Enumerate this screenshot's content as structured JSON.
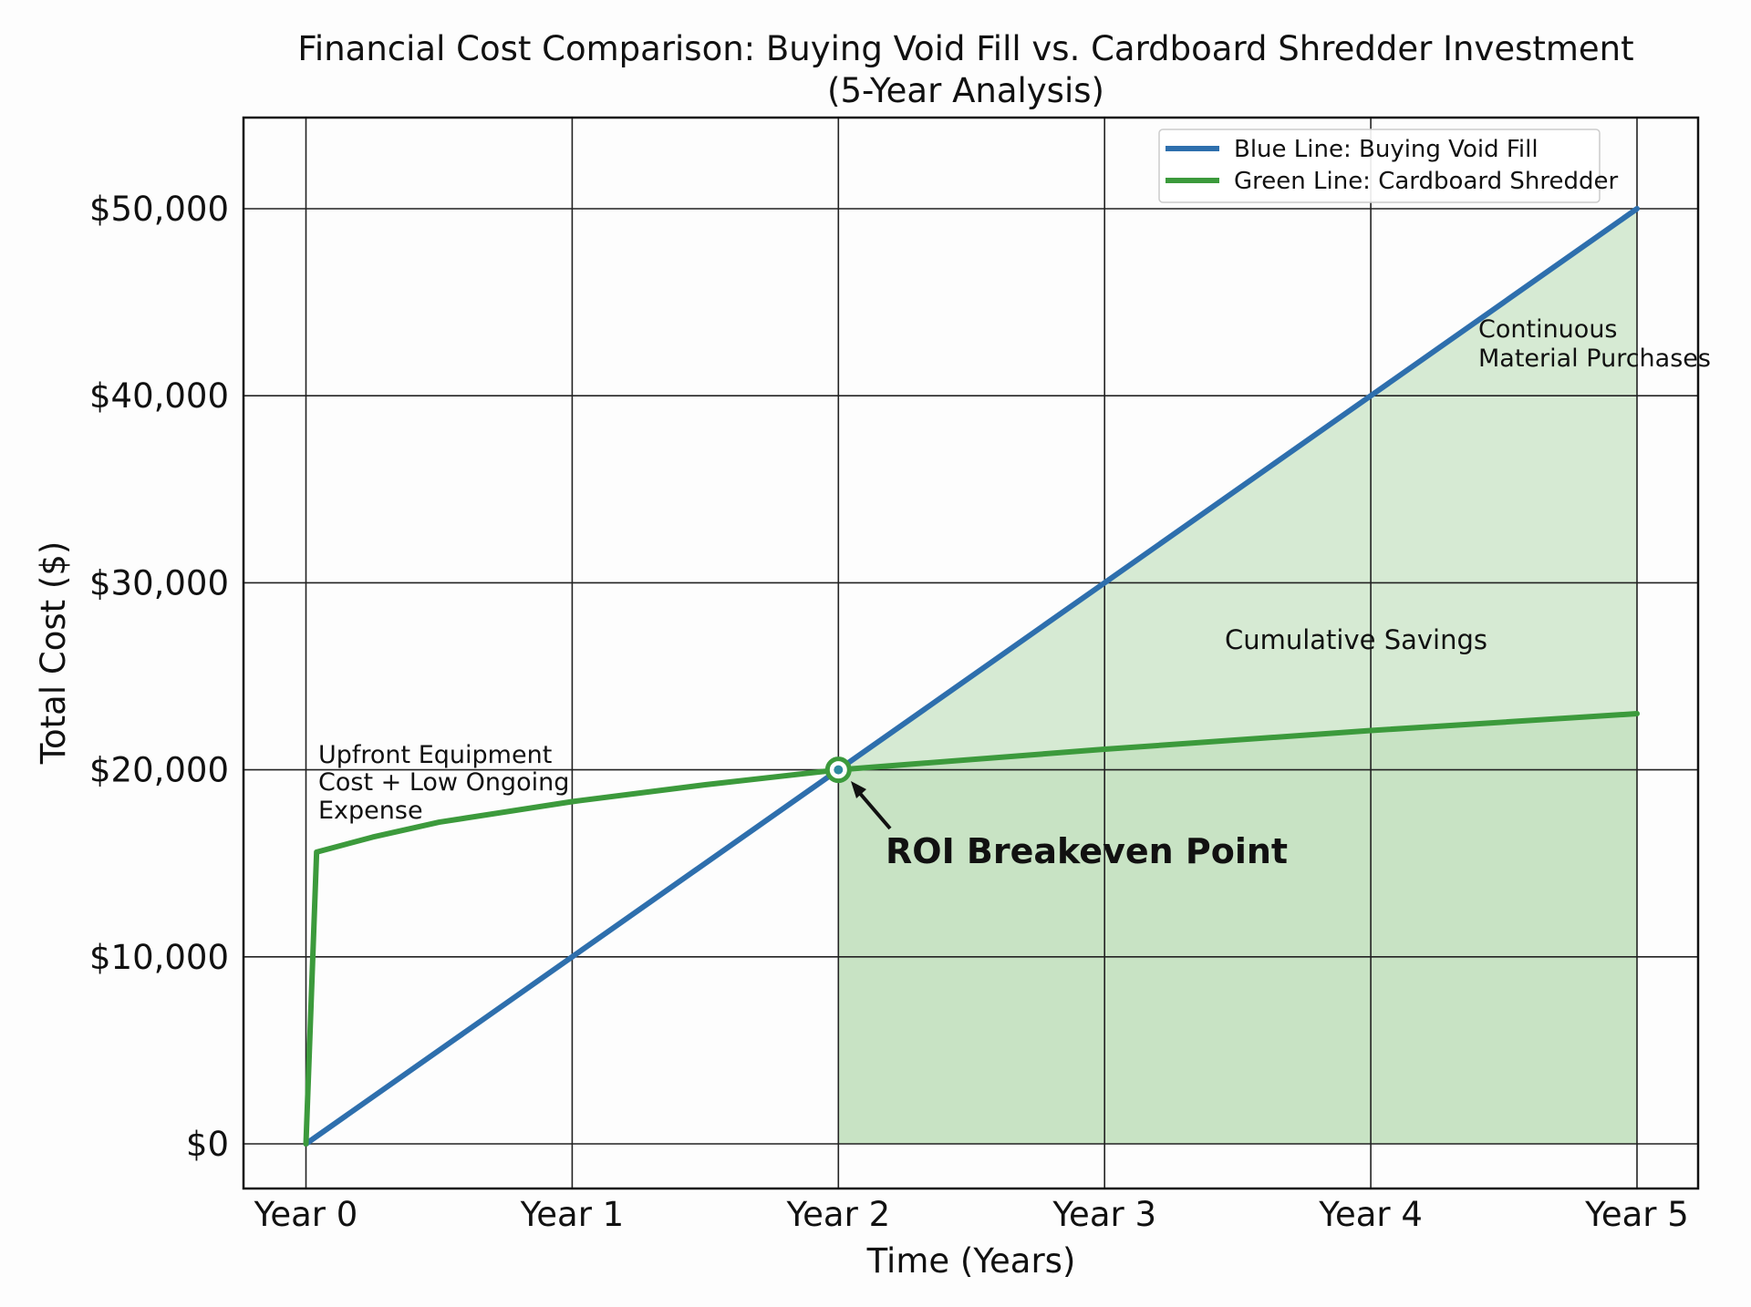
{
  "chart_data": {
    "type": "line",
    "title": "Financial Cost Comparison: Buying Void Fill vs. Cardboard Shredder Investment",
    "subtitle": "(5-Year Analysis)",
    "xlabel": "Time (Years)",
    "ylabel": "Total Cost ($)",
    "xlim": [
      0,
      5
    ],
    "ylim": [
      0,
      50000
    ],
    "x_ticks": [
      0,
      1,
      2,
      3,
      4,
      5
    ],
    "x_tick_labels": [
      "Year 0",
      "Year 1",
      "Year 2",
      "Year 3",
      "Year 4",
      "Year 5"
    ],
    "y_ticks": [
      0,
      10000,
      20000,
      30000,
      40000,
      50000
    ],
    "y_tick_labels": [
      "$0",
      "$10,000",
      "$20,000",
      "$30,000",
      "$40,000",
      "$50,000"
    ],
    "grid": true,
    "legend_position": "top-right",
    "series": [
      {
        "name": "Blue Line: Buying Void Fill",
        "color": "#2e6fad",
        "x": [
          0,
          1,
          2,
          3,
          4,
          5
        ],
        "y": [
          0,
          10000,
          20000,
          30000,
          40000,
          50000
        ]
      },
      {
        "name": "Green Line: Cardboard Shredder",
        "color": "#3c9a3c",
        "x": [
          0,
          0.04,
          0.25,
          0.5,
          1,
          1.5,
          2,
          3,
          4,
          5
        ],
        "y": [
          0,
          15600,
          16400,
          17200,
          18300,
          19200,
          20000,
          21100,
          22100,
          23000
        ]
      }
    ],
    "shaded_region": {
      "label": "Cumulative Savings",
      "x_range": [
        2,
        5
      ],
      "color": "#c8e3c4"
    },
    "breakeven": {
      "x": 2,
      "y": 20000,
      "label": "ROI Breakeven Point"
    },
    "annotations": [
      {
        "name": "upfront",
        "lines": [
          "Upfront Equipment",
          "Cost + Low Ongoing",
          "Expense"
        ]
      },
      {
        "name": "continuous",
        "lines": [
          "Continuous",
          "Material Purchases"
        ]
      }
    ]
  }
}
